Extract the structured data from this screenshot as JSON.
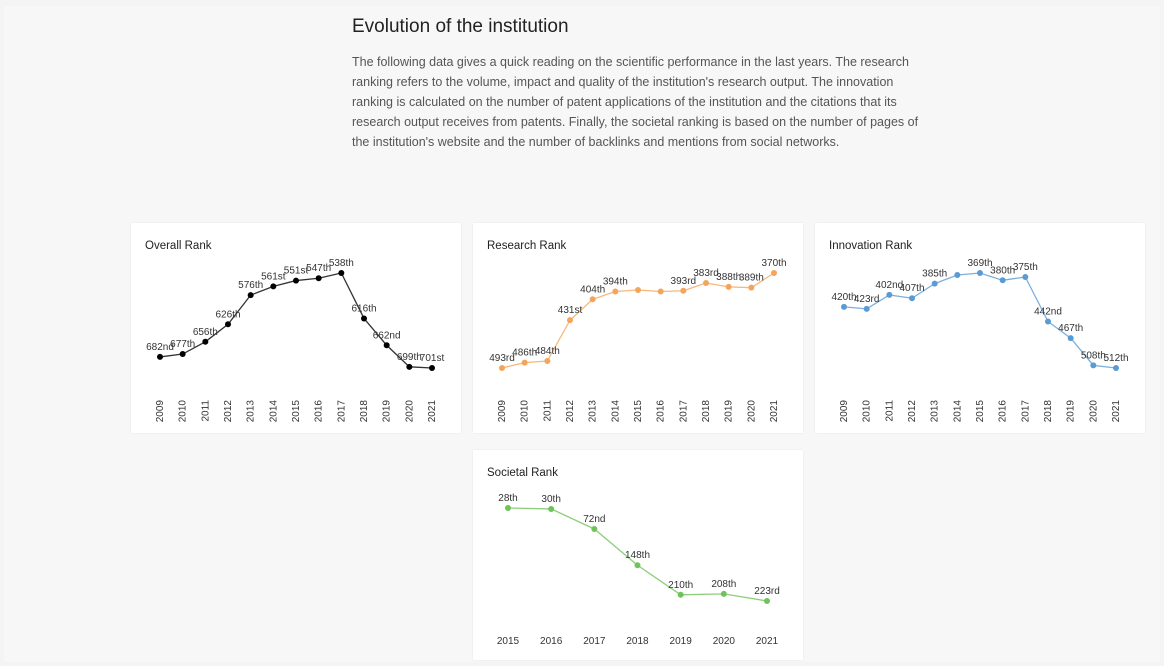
{
  "title": "Evolution of the institution",
  "description": "The following data gives a quick reading on the scientific performance in the last years. The research ranking refers to the volume, impact and quality of the institution's research output. The innovation ranking is calculated on the number of patent applications of the institution and the citations that its research output receives from patents. Finally, the societal ranking is based on the number of pages of the institution's website and the number of backlinks and mentions from social networks.",
  "chart_data": [
    {
      "type": "line",
      "title": "Overall Rank",
      "color": "#000000",
      "yreverse": true,
      "categories": [
        "2009",
        "2010",
        "2011",
        "2012",
        "2013",
        "2014",
        "2015",
        "2016",
        "2017",
        "2018",
        "2019",
        "2020",
        "2021"
      ],
      "values": [
        682,
        677,
        656,
        626,
        576,
        561,
        551,
        547,
        538,
        616,
        662,
        699,
        701
      ],
      "value_labels": [
        "682nd",
        "677th",
        "656th",
        "626th",
        "576th",
        "561st",
        "551st",
        "547th",
        "538th",
        "616th",
        "662nd",
        "699th",
        "701st"
      ]
    },
    {
      "type": "line",
      "title": "Research Rank",
      "color": "#f5a55a",
      "yreverse": true,
      "categories": [
        "2009",
        "2010",
        "2011",
        "2012",
        "2013",
        "2014",
        "2015",
        "2016",
        "2017",
        "2018",
        "2019",
        "2020",
        "2021"
      ],
      "values": [
        493,
        486,
        484,
        431,
        404,
        394,
        392,
        394,
        393,
        383,
        388,
        389,
        370
      ],
      "value_labels": [
        "493rd",
        "486th",
        "484th",
        "431st",
        "404th",
        "394th",
        null,
        null,
        "393rd",
        "383rd",
        "388th",
        "389th",
        "370th"
      ]
    },
    {
      "type": "line",
      "title": "Innovation Rank",
      "color": "#5b9bd5",
      "yreverse": true,
      "categories": [
        "2009",
        "2010",
        "2011",
        "2012",
        "2013",
        "2014",
        "2015",
        "2016",
        "2017",
        "2018",
        "2019",
        "2020",
        "2021"
      ],
      "values": [
        420,
        423,
        402,
        407,
        385,
        372,
        369,
        380,
        375,
        442,
        467,
        508,
        512
      ],
      "value_labels": [
        "420th",
        "423rd",
        "402nd",
        "407th",
        "385th",
        null,
        "369th",
        "380th",
        "375th",
        "442nd",
        "467th",
        "508th",
        "512th"
      ]
    },
    {
      "type": "line",
      "title": "Societal Rank",
      "color": "#70c25a",
      "yreverse": true,
      "categories": [
        "2015",
        "2016",
        "2017",
        "2018",
        "2019",
        "2020",
        "2021"
      ],
      "values": [
        28,
        30,
        72,
        148,
        210,
        208,
        223
      ],
      "value_labels": [
        "28th",
        "30th",
        "72nd",
        "148th",
        "210th",
        "208th",
        "223rd"
      ]
    }
  ]
}
